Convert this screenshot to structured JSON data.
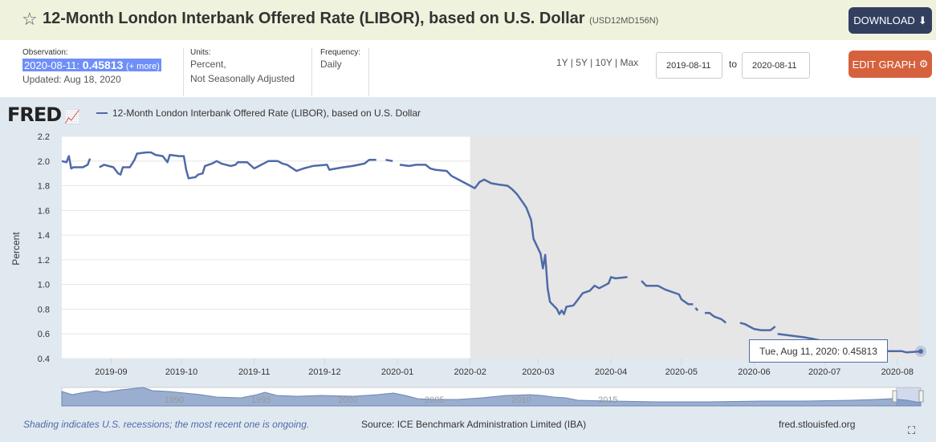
{
  "header": {
    "title": "12-Month London Interbank Offered Rate (LIBOR), based on U.S. Dollar",
    "series_id": "(USD12MD156N)",
    "download_label": "DOWNLOAD",
    "star_icon": "star-outline"
  },
  "info": {
    "observation_label": "Observation:",
    "observation_date": "2020-08-11:",
    "observation_value": "0.45813",
    "more_label": "(+ more)",
    "updated": "Updated: Aug 18, 2020",
    "units_label": "Units:",
    "units_line1": "Percent,",
    "units_line2": "Not Seasonally Adjusted",
    "frequency_label": "Frequency:",
    "frequency": "Daily"
  },
  "controls": {
    "ranges": [
      "1Y",
      "5Y",
      "10Y",
      "Max"
    ],
    "start_date": "2019-08-11",
    "to_label": "to",
    "end_date": "2020-08-11",
    "edit_label": "EDIT GRAPH"
  },
  "chart_header": {
    "logo": "FRED",
    "legend": "12-Month London Interbank Offered Rate (LIBOR), based on U.S. Dollar",
    "series_color": "#4f6aa8"
  },
  "chart_data": {
    "type": "line",
    "ylabel": "Percent",
    "ylim": [
      0.4,
      2.2
    ],
    "yticks": [
      "0.4",
      "0.6",
      "0.8",
      "1.0",
      "1.2",
      "1.4",
      "1.6",
      "1.8",
      "2.0",
      "2.2"
    ],
    "xlim": [
      "2019-08-11",
      "2020-08-11"
    ],
    "xticks": [
      "2019-09",
      "2019-10",
      "2019-11",
      "2019-12",
      "2020-01",
      "2020-02",
      "2020-03",
      "2020-04",
      "2020-05",
      "2020-06",
      "2020-07",
      "2020-08"
    ],
    "grid": "horizontal",
    "recession_shading": [
      "2020-02-01",
      "2020-08-11"
    ],
    "recession_color": "#e6e6e6",
    "series": [
      {
        "name": "12-Month London Interbank Offered Rate (LIBOR), based on U.S. Dollar",
        "segments": [
          [
            [
              "2019-08-11",
              2.0
            ],
            [
              "2019-08-13",
              1.99
            ],
            [
              "2019-08-14",
              2.04
            ],
            [
              "2019-08-15",
              1.94
            ],
            [
              "2019-08-16",
              1.95
            ],
            [
              "2019-08-19",
              1.95
            ],
            [
              "2019-08-20",
              1.95
            ],
            [
              "2019-08-22",
              1.97
            ],
            [
              "2019-08-23",
              2.02
            ]
          ],
          [
            [
              "2019-08-27",
              1.95
            ],
            [
              "2019-08-29",
              1.97
            ],
            [
              "2019-09-02",
              1.95
            ],
            [
              "2019-09-04",
              1.9
            ],
            [
              "2019-09-05",
              1.89
            ],
            [
              "2019-09-06",
              1.95
            ],
            [
              "2019-09-09",
              1.95
            ],
            [
              "2019-09-11",
              2.01
            ],
            [
              "2019-09-12",
              2.06
            ],
            [
              "2019-09-16",
              2.07
            ],
            [
              "2019-09-18",
              2.07
            ],
            [
              "2019-09-20",
              2.05
            ],
            [
              "2019-09-23",
              2.04
            ],
            [
              "2019-09-25",
              1.99
            ],
            [
              "2019-09-26",
              2.05
            ],
            [
              "2019-09-30",
              2.04
            ],
            [
              "2019-10-02",
              2.04
            ],
            [
              "2019-10-03",
              1.93
            ],
            [
              "2019-10-04",
              1.86
            ],
            [
              "2019-10-07",
              1.87
            ],
            [
              "2019-10-08",
              1.89
            ],
            [
              "2019-10-10",
              1.9
            ],
            [
              "2019-10-11",
              1.96
            ],
            [
              "2019-10-14",
              1.98
            ],
            [
              "2019-10-16",
              2.0
            ],
            [
              "2019-10-18",
              1.98
            ],
            [
              "2019-10-22",
              1.96
            ],
            [
              "2019-10-24",
              1.97
            ],
            [
              "2019-10-25",
              1.99
            ],
            [
              "2019-10-29",
              1.99
            ],
            [
              "2019-11-01",
              1.94
            ],
            [
              "2019-11-04",
              1.97
            ],
            [
              "2019-11-07",
              2.0
            ],
            [
              "2019-11-11",
              2.0
            ],
            [
              "2019-11-13",
              1.98
            ],
            [
              "2019-11-15",
              1.97
            ],
            [
              "2019-11-19",
              1.92
            ],
            [
              "2019-11-22",
              1.94
            ],
            [
              "2019-11-26",
              1.96
            ],
            [
              "2019-12-02",
              1.97
            ],
            [
              "2019-12-03",
              1.93
            ],
            [
              "2019-12-06",
              1.94
            ],
            [
              "2019-12-09",
              1.95
            ],
            [
              "2019-12-13",
              1.96
            ],
            [
              "2019-12-18",
              1.98
            ],
            [
              "2019-12-20",
              2.01
            ],
            [
              "2019-12-23",
              2.01
            ]
          ],
          [
            [
              "2019-12-27",
              2.01
            ],
            [
              "2019-12-30",
              2.0
            ]
          ],
          [
            [
              "2020-01-02",
              1.97
            ],
            [
              "2020-01-06",
              1.96
            ],
            [
              "2020-01-09",
              1.97
            ],
            [
              "2020-01-13",
              1.97
            ],
            [
              "2020-01-15",
              1.94
            ],
            [
              "2020-01-17",
              1.93
            ],
            [
              "2020-01-22",
              1.92
            ],
            [
              "2020-01-24",
              1.88
            ],
            [
              "2020-01-28",
              1.84
            ],
            [
              "2020-01-31",
              1.81
            ],
            [
              "2020-02-03",
              1.78
            ],
            [
              "2020-02-05",
              1.83
            ],
            [
              "2020-02-07",
              1.85
            ],
            [
              "2020-02-10",
              1.82
            ],
            [
              "2020-02-13",
              1.81
            ],
            [
              "2020-02-17",
              1.8
            ],
            [
              "2020-02-19",
              1.77
            ],
            [
              "2020-02-21",
              1.73
            ],
            [
              "2020-02-24",
              1.65
            ],
            [
              "2020-02-25",
              1.62
            ],
            [
              "2020-02-27",
              1.52
            ],
            [
              "2020-02-28",
              1.37
            ],
            [
              "2020-03-02",
              1.25
            ],
            [
              "2020-03-03",
              1.13
            ],
            [
              "2020-03-04",
              1.24
            ],
            [
              "2020-03-05",
              0.97
            ],
            [
              "2020-03-06",
              0.86
            ],
            [
              "2020-03-09",
              0.8
            ],
            [
              "2020-03-10",
              0.76
            ],
            [
              "2020-03-11",
              0.79
            ],
            [
              "2020-03-12",
              0.76
            ],
            [
              "2020-03-13",
              0.82
            ],
            [
              "2020-03-16",
              0.83
            ],
            [
              "2020-03-18",
              0.88
            ],
            [
              "2020-03-20",
              0.93
            ],
            [
              "2020-03-23",
              0.95
            ],
            [
              "2020-03-25",
              0.99
            ],
            [
              "2020-03-27",
              0.97
            ],
            [
              "2020-03-30",
              1.0
            ],
            [
              "2020-03-31",
              1.01
            ],
            [
              "2020-04-01",
              1.06
            ],
            [
              "2020-04-03",
              1.05
            ],
            [
              "2020-04-08",
              1.06
            ]
          ],
          [
            [
              "2020-04-14",
              1.03
            ],
            [
              "2020-04-16",
              0.99
            ],
            [
              "2020-04-21",
              0.99
            ],
            [
              "2020-04-24",
              0.96
            ],
            [
              "2020-04-30",
              0.92
            ],
            [
              "2020-05-01",
              0.88
            ],
            [
              "2020-05-04",
              0.84
            ],
            [
              "2020-05-06",
              0.84
            ]
          ],
          [
            [
              "2020-05-07",
              0.81
            ],
            [
              "2020-05-08",
              0.79
            ]
          ],
          [
            [
              "2020-05-11",
              0.77
            ],
            [
              "2020-05-13",
              0.77
            ],
            [
              "2020-05-15",
              0.74
            ],
            [
              "2020-05-18",
              0.72
            ],
            [
              "2020-05-20",
              0.69
            ]
          ],
          [
            [
              "2020-05-26",
              0.69
            ],
            [
              "2020-05-28",
              0.68
            ],
            [
              "2020-06-01",
              0.64
            ],
            [
              "2020-06-04",
              0.63
            ],
            [
              "2020-06-08",
              0.63
            ],
            [
              "2020-06-10",
              0.66
            ]
          ],
          [
            [
              "2020-06-11",
              0.6
            ],
            [
              "2020-06-15",
              0.59
            ],
            [
              "2020-06-19",
              0.58
            ],
            [
              "2020-06-23",
              0.57
            ],
            [
              "2020-06-26",
              0.56
            ],
            [
              "2020-07-01",
              0.54
            ],
            [
              "2020-07-07",
              0.52
            ],
            [
              "2020-07-15",
              0.5
            ],
            [
              "2020-07-22",
              0.48
            ],
            [
              "2020-07-28",
              0.46
            ],
            [
              "2020-08-03",
              0.46
            ],
            [
              "2020-08-05",
              0.45
            ],
            [
              "2020-08-11",
              0.45813
            ]
          ]
        ]
      }
    ],
    "tooltip": {
      "date": "Tue, Aug 11, 2020:",
      "value": "0.45813"
    }
  },
  "navigator": {
    "years": [
      "1990",
      "1995",
      "2000",
      "2005",
      "2010",
      "2015"
    ]
  },
  "footer": {
    "note": "Shading indicates U.S. recessions; the most recent one is ongoing.",
    "source": "Source: ICE Benchmark Administration Limited (IBA)",
    "site": "fred.stlouisfed.org"
  }
}
